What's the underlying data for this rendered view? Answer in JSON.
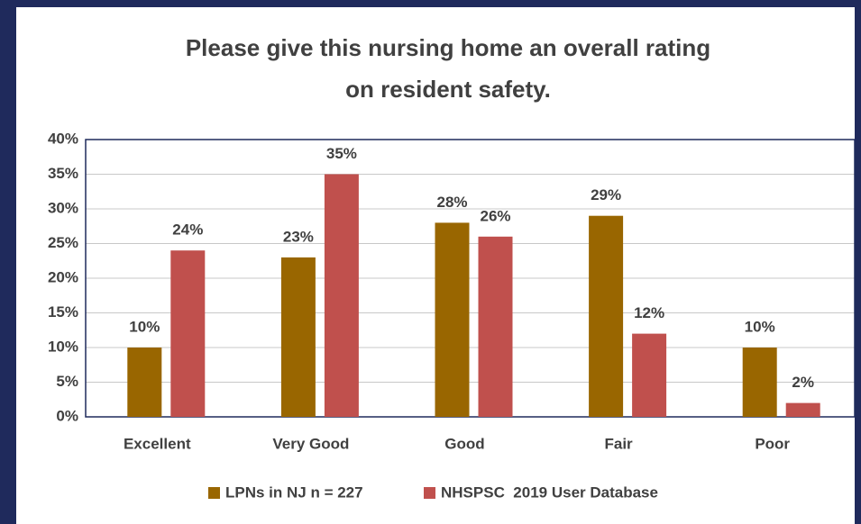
{
  "chart_data": {
    "type": "bar",
    "title": [
      "Please give this nursing home an overall rating",
      "on resident safety."
    ],
    "categories": [
      "Excellent",
      "Very Good",
      "Good",
      "Fair",
      "Poor"
    ],
    "series": [
      {
        "name": "LPNs in NJ n = 227",
        "color": "#996600",
        "values": [
          10,
          23,
          28,
          29,
          10
        ],
        "value_labels": [
          "10%",
          "23%",
          "28%",
          "29%",
          "10%"
        ]
      },
      {
        "name": "NHSPSC  2019 User Database",
        "color": "#c0504d",
        "values": [
          24,
          35,
          26,
          12,
          2
        ],
        "value_labels": [
          "24%",
          "35%",
          "26%",
          "12%",
          "2%"
        ]
      }
    ],
    "ylim": [
      0,
      40
    ],
    "yticks": [
      {
        "value": 0,
        "label": "0%"
      },
      {
        "value": 5,
        "label": "5%"
      },
      {
        "value": 10,
        "label": "10%"
      },
      {
        "value": 15,
        "label": "15%"
      },
      {
        "value": 20,
        "label": "20%"
      },
      {
        "value": 25,
        "label": "25%"
      },
      {
        "value": 30,
        "label": "30%"
      },
      {
        "value": 35,
        "label": "35%"
      },
      {
        "value": 40,
        "label": "40%"
      }
    ],
    "grid": true,
    "legend": "bottom"
  }
}
